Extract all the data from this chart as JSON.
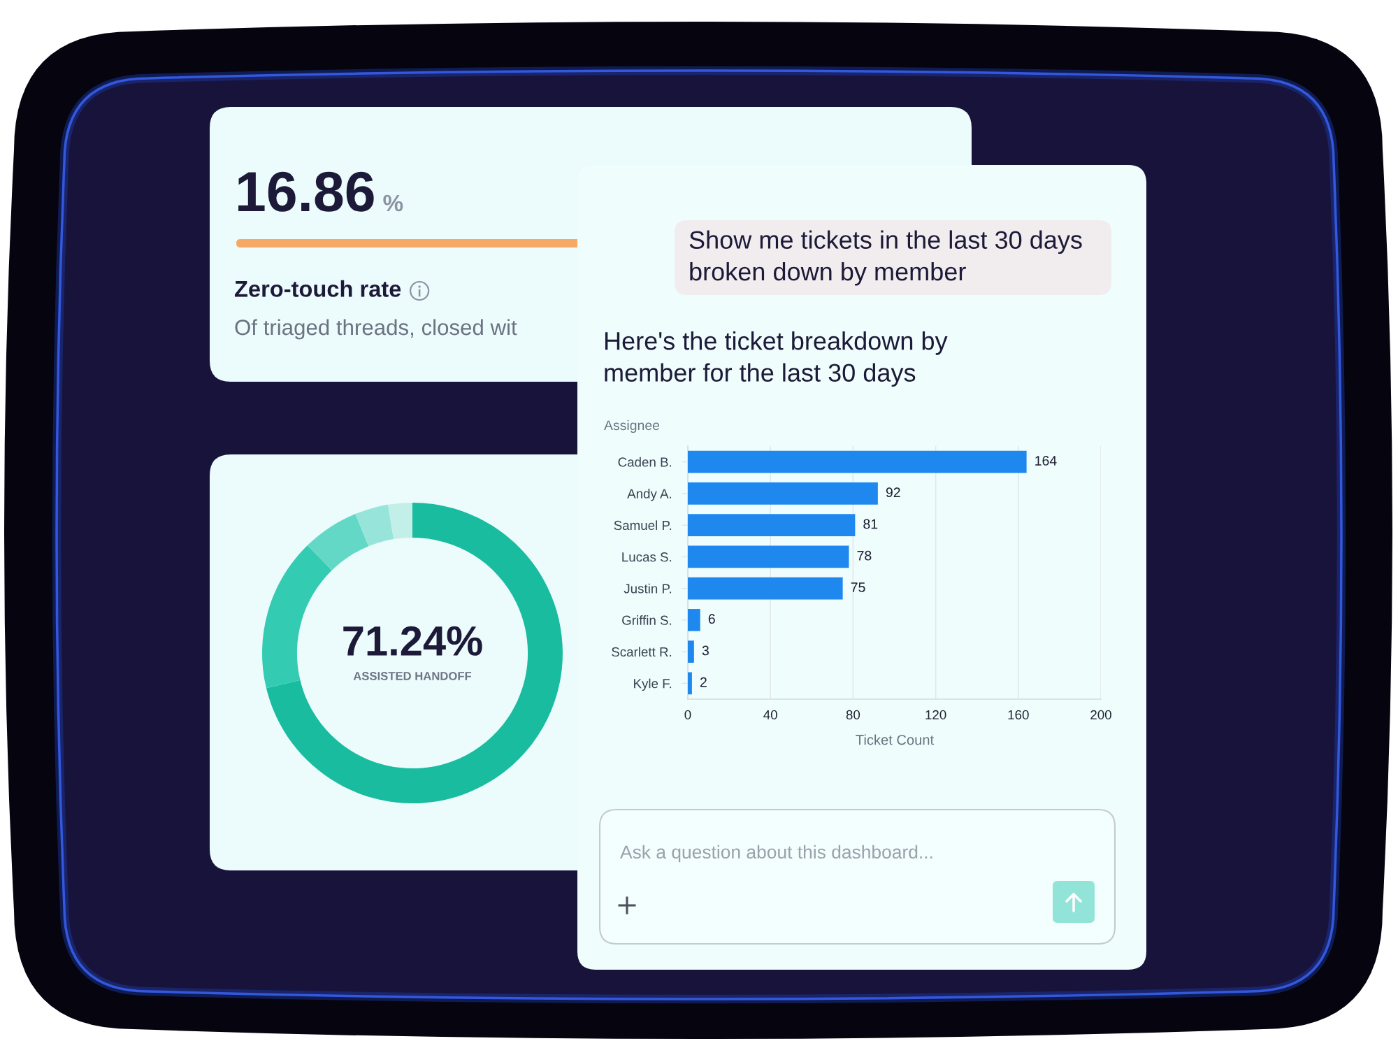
{
  "chart_data": [
    {
      "type": "other",
      "title": "Zero-touch rate",
      "subtitle": "Of triaged threads, closed wit",
      "annotations": [
        "16.86",
        "%"
      ]
    },
    {
      "type": "donut",
      "categories": [
        null,
        null,
        null,
        null,
        null
      ],
      "values": [
        71.24,
        16.46,
        6.1,
        3.6,
        2.6
      ],
      "colors": [
        "#1abc9f",
        "#33ccb2",
        "#63d8c6",
        "#97e5da",
        "#c3efe9"
      ],
      "annotations": [
        "71.24%",
        "ASSISTED HANDOFF"
      ]
    },
    {
      "type": "other",
      "annotations": [
        "Show me tickets in the last 30 days\nbroken down by member"
      ]
    },
    {
      "type": "bar",
      "orientation": "horizontal",
      "title": "Here's the ticket breakdown by\nmember for the last 30 days",
      "ylabel": "Assignee",
      "xlabel": "Ticket Count",
      "categories": [
        "Caden B.",
        "Andy A.",
        "Samuel P.",
        "Lucas S.",
        "Justin P.",
        "Griffin S.",
        "Scarlett R.",
        "Kyle F."
      ],
      "values": [
        164,
        92,
        81,
        78,
        75,
        6,
        3,
        2
      ],
      "color": "#1f88ef",
      "xlim": [
        0,
        200
      ],
      "xticks": [
        0,
        40,
        80,
        120,
        160,
        200
      ],
      "grid": "x",
      "data_labels": true
    },
    {
      "type": "other",
      "annotations": [
        "Ask a question about this dashboard..."
      ]
    }
  ]
}
